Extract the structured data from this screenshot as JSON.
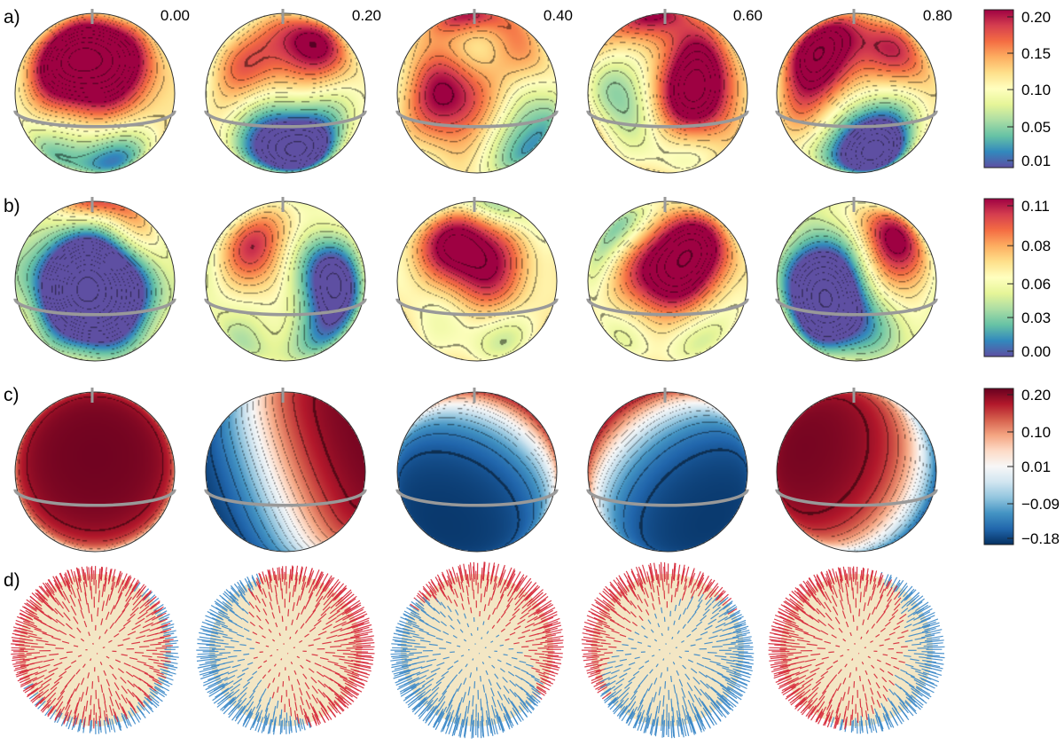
{
  "figure": {
    "phases": [
      "0.00",
      "0.20",
      "0.40",
      "0.60",
      "0.80"
    ],
    "rows": [
      {
        "id": "a",
        "label": "a)",
        "colormap": "spectral",
        "colorbar_ticks": [
          "0.20",
          "0.15",
          "0.10",
          "0.05",
          "0.01"
        ],
        "maps": [
          {
            "hot": [
              [
                -0.1,
                -0.55,
                1.0
              ],
              [
                0.3,
                -0.3,
                0.6
              ],
              [
                -0.4,
                -0.2,
                0.6
              ]
            ],
            "cold": [
              [
                0.2,
                0.85,
                0.8
              ],
              [
                -0.6,
                0.7,
                0.5
              ]
            ],
            "base": 0.58
          },
          {
            "hot": [
              [
                0.3,
                -0.6,
                1.0
              ],
              [
                -0.55,
                -0.2,
                0.55
              ]
            ],
            "cold": [
              [
                0.0,
                0.8,
                1.0
              ],
              [
                0.3,
                0.5,
                0.6
              ],
              [
                -0.3,
                0.35,
                0.3
              ]
            ],
            "base": 0.5
          },
          {
            "hot": [
              [
                -0.35,
                0.05,
                1.0
              ],
              [
                0.5,
                -0.35,
                0.55
              ],
              [
                -0.1,
                -0.95,
                0.8
              ]
            ],
            "cold": [
              [
                0.45,
                0.1,
                0.45
              ],
              [
                0.0,
                -0.6,
                0.45
              ],
              [
                0.75,
                0.6,
                0.8
              ]
            ],
            "base": 0.55
          },
          {
            "hot": [
              [
                0.3,
                0.05,
                1.0
              ],
              [
                -0.2,
                -0.95,
                0.75
              ],
              [
                0.3,
                -0.4,
                0.6
              ]
            ],
            "cold": [
              [
                -0.6,
                0.0,
                0.6
              ],
              [
                0.0,
                0.7,
                0.3
              ],
              [
                -0.2,
                -0.4,
                0.3
              ]
            ],
            "base": 0.58
          },
          {
            "hot": [
              [
                -0.45,
                -0.6,
                1.0
              ],
              [
                0.5,
                -0.4,
                0.7
              ],
              [
                -0.5,
                0.1,
                0.55
              ]
            ],
            "cold": [
              [
                0.1,
                0.85,
                1.0
              ],
              [
                0.25,
                0.2,
                0.55
              ],
              [
                0.2,
                0.6,
                0.6
              ]
            ],
            "base": 0.55
          }
        ]
      },
      {
        "id": "b",
        "label": "b)",
        "colormap": "spectral",
        "colorbar_ticks": [
          "0.11",
          "0.08",
          "0.06",
          "0.03",
          "0.00"
        ],
        "maps": [
          {
            "hot": [
              [
                0.1,
                -0.98,
                0.9
              ],
              [
                0.6,
                -0.4,
                0.35
              ]
            ],
            "cold": [
              [
                -0.2,
                -0.1,
                1.0
              ],
              [
                0.2,
                0.1,
                0.9
              ],
              [
                -0.1,
                0.5,
                0.6
              ]
            ],
            "base": 0.35
          },
          {
            "hot": [
              [
                -0.3,
                -0.45,
                0.9
              ],
              [
                0.05,
                0.4,
                0.4
              ]
            ],
            "cold": [
              [
                0.45,
                -0.1,
                1.0
              ],
              [
                0.6,
                0.5,
                0.7
              ],
              [
                -0.5,
                0.7,
                0.3
              ]
            ],
            "base": 0.45
          },
          {
            "hot": [
              [
                -0.2,
                -0.55,
                1.0
              ],
              [
                0.15,
                -0.1,
                0.55
              ]
            ],
            "cold": [
              [
                0.2,
                -0.9,
                0.6
              ],
              [
                -0.6,
                0.3,
                0.2
              ],
              [
                0.3,
                0.7,
                0.3
              ]
            ],
            "base": 0.55
          },
          {
            "hot": [
              [
                0.3,
                -0.45,
                1.0
              ],
              [
                0.0,
                -0.1,
                0.55
              ],
              [
                -0.4,
                0.0,
                0.4
              ]
            ],
            "cold": [
              [
                -0.6,
                -0.6,
                0.7
              ],
              [
                0.6,
                0.6,
                0.3
              ],
              [
                -0.6,
                0.6,
                0.3
              ]
            ],
            "base": 0.55
          },
          {
            "hot": [
              [
                0.45,
                -0.55,
                1.0
              ],
              [
                0.4,
                0.0,
                0.6
              ]
            ],
            "cold": [
              [
                -0.4,
                -0.1,
                1.0
              ],
              [
                -0.5,
                0.5,
                0.7
              ],
              [
                0.05,
                0.3,
                0.6
              ]
            ],
            "base": 0.4
          }
        ]
      },
      {
        "id": "c",
        "label": "c)",
        "colormap": "diverging",
        "colorbar_ticks": [
          "0.20",
          "0.10",
          "0.01",
          "−0.09",
          "−0.18"
        ],
        "maps": [
          {
            "dir": [
              0.0,
              -0.2,
              0.98
            ],
            "bias": 0.35
          },
          {
            "dir": [
              0.92,
              -0.35,
              0.15
            ],
            "bias": 0.05
          },
          {
            "dir": [
              0.4,
              -0.65,
              -0.65
            ],
            "bias": -0.25
          },
          {
            "dir": [
              -0.55,
              -0.6,
              -0.58
            ],
            "bias": -0.2
          },
          {
            "dir": [
              -0.65,
              -0.3,
              0.7
            ],
            "bias": 0.1
          }
        ]
      },
      {
        "id": "d",
        "label": "d)",
        "colormap": "vectors",
        "colorbar_ticks": [],
        "maps": [
          {
            "dir": [
              -0.25,
              -0.25,
              0.94
            ]
          },
          {
            "dir": [
              0.85,
              -0.3,
              0.4
            ]
          },
          {
            "dir": [
              0.55,
              -0.75,
              -0.35
            ]
          },
          {
            "dir": [
              -0.5,
              -0.7,
              -0.5
            ]
          },
          {
            "dir": [
              -0.75,
              -0.2,
              0.62
            ]
          }
        ]
      }
    ]
  }
}
